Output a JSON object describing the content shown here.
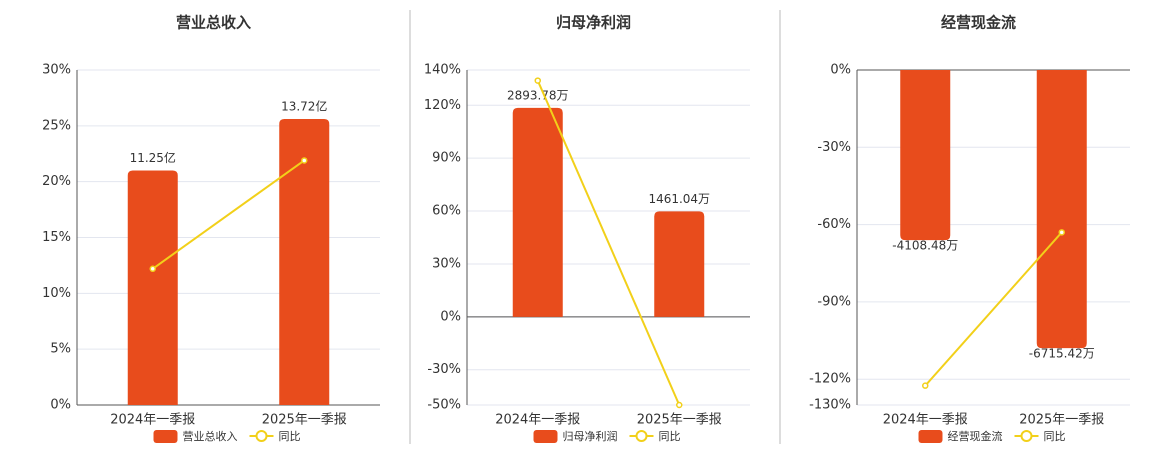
{
  "chart_data": [
    {
      "type": "bar",
      "title": "营业总收入",
      "categories": [
        "2024年一季报",
        "2025年一季报"
      ],
      "series": [
        {
          "name": "营业总收入",
          "color": "#e84c1c",
          "axis": "y2",
          "values": [
            11.25,
            13.72
          ],
          "value_labels": [
            "11.25亿",
            "13.72亿"
          ]
        },
        {
          "name": "同比",
          "type": "line",
          "color": "#f2d01a",
          "values": [
            12.2,
            21.9
          ]
        }
      ],
      "ylim": [
        0,
        30
      ],
      "yticks": [
        {
          "value": 0,
          "label": "0%"
        },
        {
          "value": 5,
          "label": "5%"
        },
        {
          "value": 10,
          "label": "10%"
        },
        {
          "value": 15,
          "label": "15%"
        },
        {
          "value": 20,
          "label": "20%"
        },
        {
          "value": 25,
          "label": "25%"
        },
        {
          "value": 30,
          "label": "30%"
        }
      ],
      "y2lim": [
        0,
        16.07
      ],
      "grid": true
    },
    {
      "type": "bar",
      "title": "归母净利润",
      "categories": [
        "2024年一季报",
        "2025年一季报"
      ],
      "series": [
        {
          "name": "归母净利润",
          "color": "#e84c1c",
          "axis": "y2",
          "values": [
            2893.78,
            1461.04
          ],
          "value_labels": [
            "2893.78万",
            "1461.04万"
          ]
        },
        {
          "name": "同比",
          "type": "line",
          "color": "#f2d01a",
          "values": [
            134,
            -50
          ]
        }
      ],
      "ylim": [
        -50,
        140
      ],
      "yticks": [
        {
          "value": -50,
          "label": "-50%"
        },
        {
          "value": -30,
          "label": "-30%"
        },
        {
          "value": 0,
          "label": "0%"
        },
        {
          "value": 30,
          "label": "30%"
        },
        {
          "value": 60,
          "label": "60%"
        },
        {
          "value": 90,
          "label": "90%"
        },
        {
          "value": 120,
          "label": "120%"
        },
        {
          "value": 140,
          "label": "140%"
        }
      ],
      "y2lim": [
        -1221,
        3419
      ],
      "grid": true
    },
    {
      "type": "bar",
      "title": "经营现金流",
      "categories": [
        "2024年一季报",
        "2025年一季报"
      ],
      "series": [
        {
          "name": "经营现金流",
          "color": "#e84c1c",
          "axis": "y2",
          "values": [
            -4108.48,
            -6715.42
          ],
          "value_labels": [
            "-4108.48万",
            "-6715.42万"
          ]
        },
        {
          "name": "同比",
          "type": "line",
          "color": "#f2d01a",
          "values": [
            -122.5,
            -63
          ]
        }
      ],
      "ylim": [
        -130,
        0
      ],
      "yticks": [
        {
          "value": -130,
          "label": "-130%"
        },
        {
          "value": -120,
          "label": "-120%"
        },
        {
          "value": -90,
          "label": "-90%"
        },
        {
          "value": -60,
          "label": "-60%"
        },
        {
          "value": -30,
          "label": "-30%"
        },
        {
          "value": 0,
          "label": "0%"
        }
      ],
      "y2lim": [
        -8090,
        0
      ],
      "grid": true
    }
  ]
}
